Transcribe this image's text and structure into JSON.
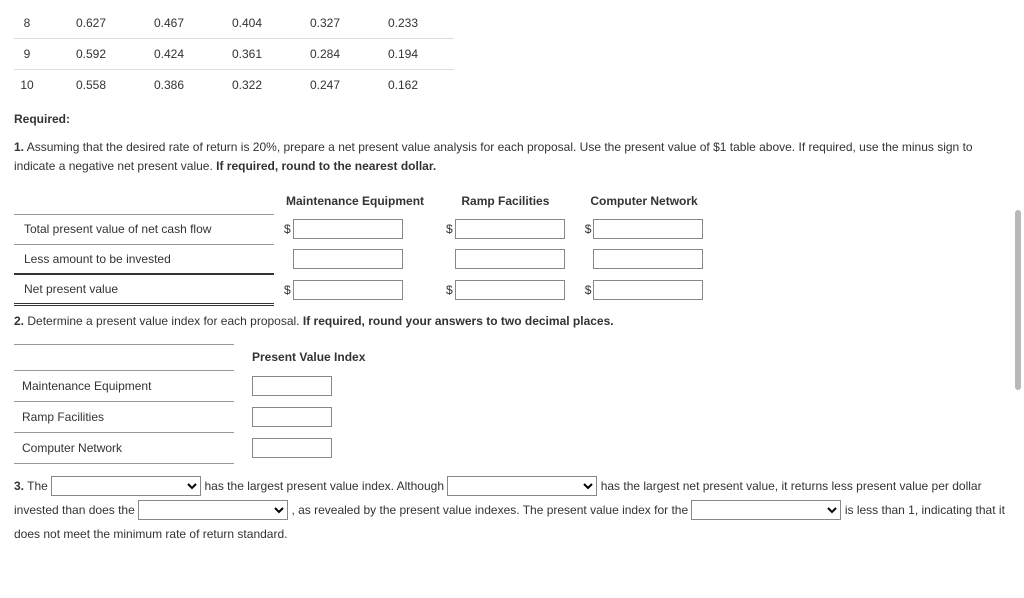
{
  "pv_table": {
    "rows": [
      {
        "n": "8",
        "c1": "0.627",
        "c2": "0.467",
        "c3": "0.404",
        "c4": "0.327",
        "c5": "0.233"
      },
      {
        "n": "9",
        "c1": "0.592",
        "c2": "0.424",
        "c3": "0.361",
        "c4": "0.284",
        "c5": "0.194"
      },
      {
        "n": "10",
        "c1": "0.558",
        "c2": "0.386",
        "c3": "0.322",
        "c4": "0.247",
        "c5": "0.162"
      }
    ]
  },
  "required_label": "Required:",
  "q1": {
    "num": "1.",
    "text_a": "Assuming that the desired rate of return is 20%, prepare a net present value analysis for each proposal. Use the present value of $1 table above. If required, use the minus sign to indicate a negative net present value. ",
    "text_b": "If required, round to the nearest dollar.",
    "col_headers": {
      "c1": "Maintenance Equipment",
      "c2": "Ramp Facilities",
      "c3": "Computer Network"
    },
    "rows": {
      "r1": "Total present value of net cash flow",
      "r2": "Less amount to be invested",
      "r3": "Net present value"
    },
    "dollar": "$"
  },
  "q2": {
    "num": "2.",
    "text_a": "Determine a present value index for each proposal. ",
    "text_b": "If required, round your answers to two decimal places.",
    "header": "Present Value Index",
    "rows": {
      "r1": "Maintenance Equipment",
      "r2": "Ramp Facilities",
      "r3": "Computer Network"
    }
  },
  "q3": {
    "num": "3.",
    "t1": "The ",
    "t2": " has the largest present value index. Although ",
    "t3": " has the largest net present value, it returns less present value per dollar invested than does the ",
    "t4": " , as revealed by the present value indexes. The present value index for the ",
    "t5": " is less than 1, indicating that it does not meet the minimum rate of return standard."
  }
}
